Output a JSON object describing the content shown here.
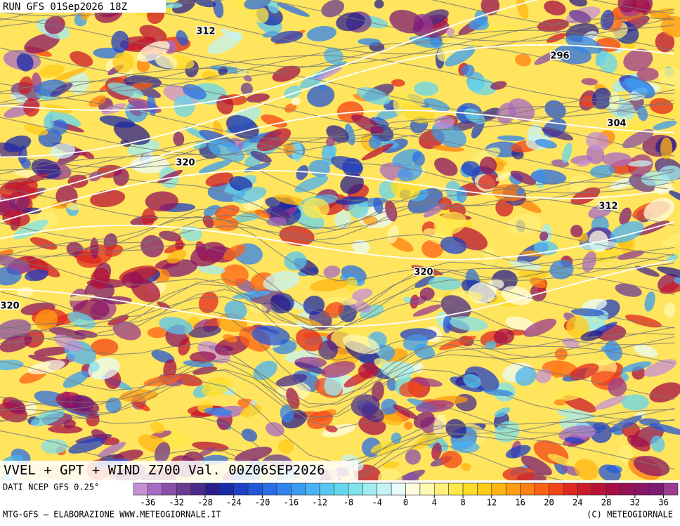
{
  "header": {
    "run": "RUN GFS 01Sep2026 18Z"
  },
  "map": {
    "title": "VVEL + GPT + WIND Z700 Val. 00Z06SEP2026",
    "contour_labels": [
      "312",
      "296",
      "304",
      "320",
      "312",
      "320",
      "320"
    ]
  },
  "colorbar": {
    "source": "DATI NCEP GFS 0.25°",
    "lim": [
      -38,
      38
    ],
    "ticks": [
      -36,
      -32,
      -28,
      -24,
      -20,
      -16,
      -12,
      -8,
      -4,
      0,
      4,
      8,
      12,
      16,
      20,
      24,
      28,
      32,
      36
    ],
    "colors": [
      "#c58fd6",
      "#a86ac4",
      "#8a4fa8",
      "#6b3a93",
      "#4b2b8a",
      "#2a1e8c",
      "#1a2aa8",
      "#1f3fc4",
      "#2356d8",
      "#2a6de6",
      "#2f84ee",
      "#3a9cf2",
      "#48b2f4",
      "#57c6f2",
      "#66d6ee",
      "#7fe2ec",
      "#a0ecf0",
      "#c6f4f6",
      "#e8fcfc",
      "#fffde0",
      "#fff8b0",
      "#fff07a",
      "#ffe84a",
      "#ffdc28",
      "#ffcb18",
      "#ffb612",
      "#ff9c10",
      "#ff8012",
      "#ff6214",
      "#f44418",
      "#e0281e",
      "#cc1a2a",
      "#b81236",
      "#a60e46",
      "#961056",
      "#8a1466",
      "#7c1a74",
      "#9b3a8e"
    ]
  },
  "footer": {
    "left": "MTG-GFS – ELABORAZIONE WWW.METEOGIORNALE.IT",
    "right": "(C) METEOGIORNALE"
  }
}
